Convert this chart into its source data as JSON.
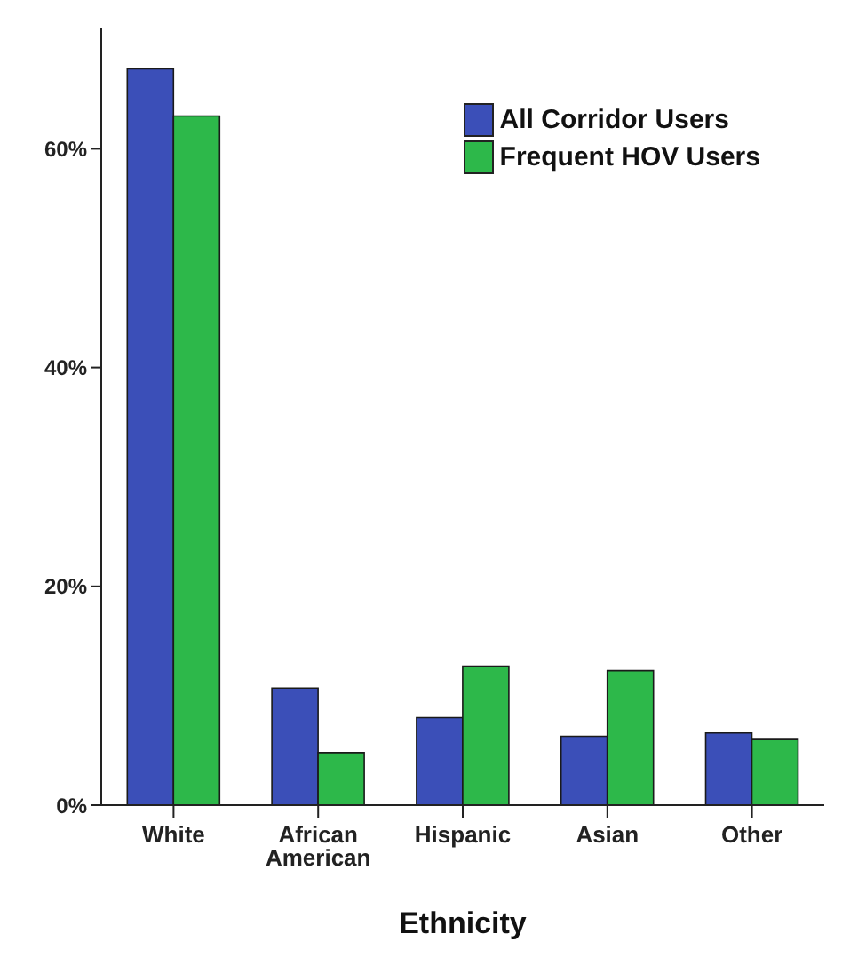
{
  "chart_data": {
    "type": "bar",
    "xlabel": "Ethnicity",
    "categories": [
      "White",
      "African American",
      "Hispanic",
      "Asian",
      "Other"
    ],
    "series": [
      {
        "name": "All Corridor Users",
        "color": "#3b4fb8",
        "values": [
          67.3,
          10.7,
          8.0,
          6.3,
          6.6
        ]
      },
      {
        "name": "Frequent HOV Users",
        "color": "#2db84a",
        "values": [
          63.0,
          4.8,
          12.7,
          12.3,
          6.0
        ]
      }
    ],
    "ylim": [
      0,
      71
    ],
    "yticks": [
      {
        "value": 0,
        "label": "0%"
      },
      {
        "value": 20,
        "label": "20%"
      },
      {
        "value": 40,
        "label": "40%"
      },
      {
        "value": 60,
        "label": "60%"
      }
    ],
    "grid": false,
    "legend": "top right"
  }
}
